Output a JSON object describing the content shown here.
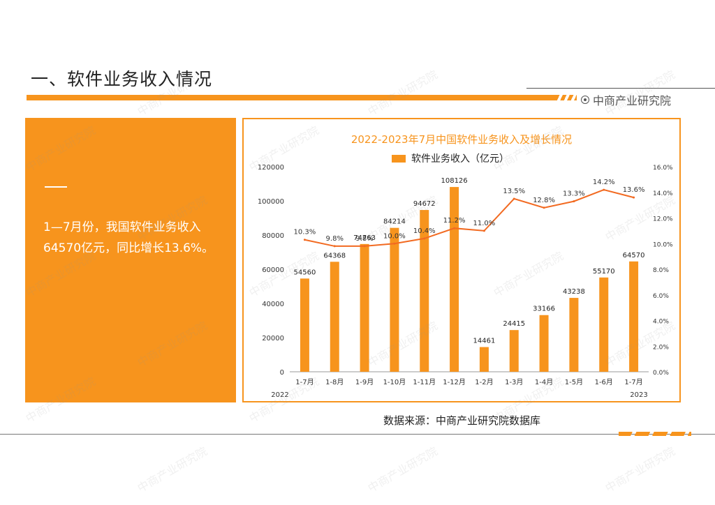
{
  "page": {
    "title": "一、软件业务收入情况",
    "brand": "中商产业研究院",
    "summary": "1—7月份，我国软件业务收入64570亿元，同比增长13.6%。",
    "source": "数据来源：中商产业研究院数据库",
    "watermark": "中商产业研究院"
  },
  "colors": {
    "accent": "#f7941d",
    "bar": "#f7941d",
    "line": "#f26a21"
  },
  "chart_data": {
    "type": "bar",
    "title": "2022-2023年7月中国软件业务收入及增长情况",
    "legend": [
      "软件业务收入（亿元）"
    ],
    "legend_position": "top",
    "categories": [
      "1-7月",
      "1-8月",
      "1-9月",
      "1-10月",
      "1-11月",
      "1-12月",
      "1-2月",
      "1-3月",
      "1-4月",
      "1-5月",
      "1-6月",
      "1-7月"
    ],
    "year_labels": {
      "left": "2022",
      "right": "2023"
    },
    "series": [
      {
        "name": "软件业务收入（亿元）",
        "type": "bar",
        "axis": "left",
        "values": [
          54560,
          64368,
          74763,
          84214,
          94672,
          108126,
          14461,
          24415,
          33166,
          43238,
          55170,
          64570
        ]
      },
      {
        "type": "line",
        "axis": "right",
        "values": [
          10.3,
          9.8,
          9.8,
          10.0,
          10.4,
          11.2,
          11.0,
          13.5,
          12.8,
          13.3,
          14.2,
          13.6
        ],
        "labels": [
          "10.3%",
          "9.8%",
          "9.8%",
          "10.0%",
          "10.4%",
          "11.2%",
          "11.0%",
          "13.5%",
          "12.8%",
          "13.3%",
          "14.2%",
          "13.6%"
        ]
      }
    ],
    "y_left": {
      "min": 0,
      "max": 120000,
      "ticks": [
        0,
        20000,
        40000,
        60000,
        80000,
        100000,
        120000
      ]
    },
    "y_right": {
      "min": 0,
      "max": 16,
      "ticks": [
        "0.0%",
        "2.0%",
        "4.0%",
        "6.0%",
        "8.0%",
        "10.0%",
        "12.0%",
        "14.0%",
        "16.0%"
      ]
    },
    "grid": false
  }
}
